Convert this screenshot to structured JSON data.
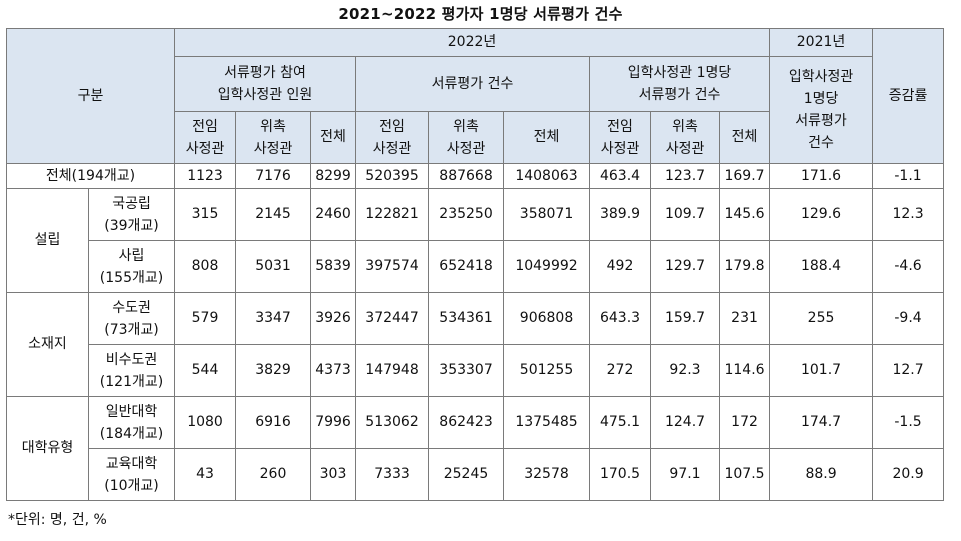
{
  "title": "2021~2022 평가자 1명당 서류평가 건수",
  "header": {
    "gubun": "구분",
    "year2022": "2022년",
    "year2021": "2021년",
    "participants": "서류평가 참여\n입학사정관 인원",
    "eval_count": "서류평가 건수",
    "per_officer": "입학사정관 1명당\n서류평가 건수",
    "per_officer_2021": "입학사정관\n1명당\n서류평가\n건수",
    "growth": "증감률",
    "full_time": "전임\n사정관",
    "commissioned": "위촉\n사정관",
    "total": "전체"
  },
  "rows": [
    {
      "group": "",
      "label": "전체(194개교)",
      "values": [
        "1123",
        "7176",
        "8299",
        "520395",
        "887668",
        "1408063",
        "463.4",
        "123.7",
        "169.7",
        "171.6",
        "-1.1"
      ]
    },
    {
      "group": "설립",
      "label": "국공립\n(39개교)",
      "values": [
        "315",
        "2145",
        "2460",
        "122821",
        "235250",
        "358071",
        "389.9",
        "109.7",
        "145.6",
        "129.6",
        "12.3"
      ]
    },
    {
      "group": "",
      "label": "사립\n(155개교)",
      "values": [
        "808",
        "5031",
        "5839",
        "397574",
        "652418",
        "1049992",
        "492",
        "129.7",
        "179.8",
        "188.4",
        "-4.6"
      ]
    },
    {
      "group": "소재지",
      "label": "수도권\n(73개교)",
      "values": [
        "579",
        "3347",
        "3926",
        "372447",
        "534361",
        "906808",
        "643.3",
        "159.7",
        "231",
        "255",
        "-9.4"
      ]
    },
    {
      "group": "",
      "label": "비수도권\n(121개교)",
      "values": [
        "544",
        "3829",
        "4373",
        "147948",
        "353307",
        "501255",
        "272",
        "92.3",
        "114.6",
        "101.7",
        "12.7"
      ]
    },
    {
      "group": "대학유형",
      "label": "일반대학\n(184개교)",
      "values": [
        "1080",
        "6916",
        "7996",
        "513062",
        "862423",
        "1375485",
        "475.1",
        "124.7",
        "172",
        "174.7",
        "-1.5"
      ]
    },
    {
      "group": "",
      "label": "교육대학\n(10개교)",
      "values": [
        "43",
        "260",
        "303",
        "7333",
        "25245",
        "32578",
        "170.5",
        "97.1",
        "107.5",
        "88.9",
        "20.9"
      ]
    }
  ],
  "footnote": "*단위: 명, 건, %"
}
